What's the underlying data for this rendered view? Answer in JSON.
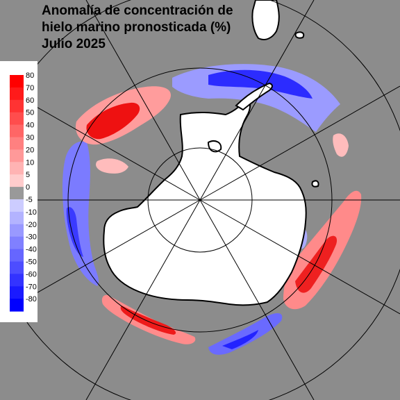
{
  "title": {
    "line1": "Anomalía de concentración de",
    "line2": "hielo marino pronosticada (%)",
    "line3": "Julio 2025"
  },
  "legend": {
    "items": [
      {
        "label": "80",
        "color": "#ff0000"
      },
      {
        "label": "70",
        "color": "#ff1a1a"
      },
      {
        "label": "60",
        "color": "#ff3333"
      },
      {
        "label": "50",
        "color": "#ff4d4d"
      },
      {
        "label": "40",
        "color": "#ff6666"
      },
      {
        "label": "30",
        "color": "#ff8080"
      },
      {
        "label": "20",
        "color": "#ff9999"
      },
      {
        "label": "10",
        "color": "#ffb3b3"
      },
      {
        "label": "5",
        "color": "#ffcccc"
      },
      {
        "label": "0",
        "color": "#999999"
      },
      {
        "label": "-5",
        "color": "#ccccff"
      },
      {
        "label": "-10",
        "color": "#b3b3ff"
      },
      {
        "label": "-20",
        "color": "#9999ff"
      },
      {
        "label": "-30",
        "color": "#8080ff"
      },
      {
        "label": "-40",
        "color": "#6666ff"
      },
      {
        "label": "-50",
        "color": "#4d4dff"
      },
      {
        "label": "-60",
        "color": "#3333ff"
      },
      {
        "label": "-70",
        "color": "#1a1aff"
      },
      {
        "label": "-80",
        "color": "#0000ff"
      }
    ]
  },
  "colors": {
    "ocean": "#8c8c8c",
    "land": "#ffffff",
    "coast": "#000000",
    "grid": "#000000"
  }
}
